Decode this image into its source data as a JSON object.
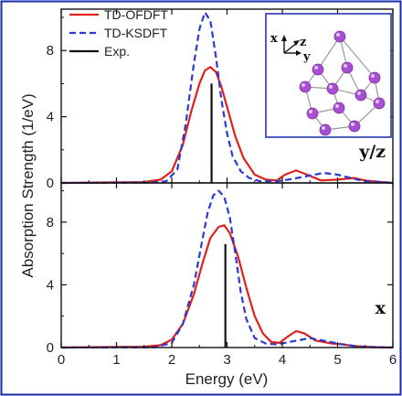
{
  "chart_data": {
    "type": "line",
    "xlabel": "Energy (eV)",
    "ylabel": "Absorption Strength (1/eV)",
    "xlim": [
      0,
      6
    ],
    "x_ticks": [
      "0",
      "1",
      "2",
      "3",
      "4",
      "5",
      "6"
    ],
    "legend": {
      "placement": "top-left",
      "entries": [
        "TD-OFDFT",
        "TD-KSDFT",
        "Exp."
      ]
    },
    "colors": {
      "ofdft": "#e0201b",
      "ksdft": "#2a3bd4",
      "exp": "#111111",
      "frame": "#1a2aa8",
      "atom": "#a84ed3"
    },
    "inset": {
      "label_x": "x",
      "label_z": "z",
      "label_y": "y"
    },
    "panels": [
      {
        "label": "y/z",
        "ylim": [
          0,
          10.5
        ],
        "y_ticks": [
          "0",
          "4",
          "8"
        ],
        "series": [
          {
            "name": "TD-OFDFT",
            "style": "solid",
            "x": [
              0,
              1.5,
              1.8,
              2.0,
              2.2,
              2.35,
              2.5,
              2.6,
              2.7,
              2.8,
              2.9,
              3.0,
              3.15,
              3.3,
              3.5,
              3.7,
              3.9,
              4.05,
              4.25,
              4.45,
              4.7,
              5.0,
              5.3,
              5.5,
              5.8,
              6.0
            ],
            "y": [
              0,
              0.05,
              0.2,
              0.7,
              2.3,
              4.3,
              6.0,
              6.8,
              7.0,
              6.7,
              5.8,
              4.6,
              2.8,
              1.5,
              0.5,
              0.2,
              0.15,
              0.5,
              0.75,
              0.5,
              0.15,
              0.2,
              0.3,
              0.15,
              0.05,
              0
            ]
          },
          {
            "name": "TD-KSDFT",
            "style": "dashed",
            "x": [
              0,
              1.6,
              1.9,
              2.1,
              2.25,
              2.4,
              2.5,
              2.6,
              2.7,
              2.8,
              2.9,
              3.0,
              3.1,
              3.25,
              3.4,
              3.6,
              3.9,
              4.2,
              4.5,
              4.75,
              5.0,
              5.3,
              5.5,
              5.8,
              6.0
            ],
            "y": [
              0,
              0.02,
              0.1,
              0.8,
              3.5,
              7.2,
              9.3,
              10.3,
              9.8,
              7.6,
              5.0,
              3.0,
              1.6,
              0.7,
              0.3,
              0.1,
              0.1,
              0.25,
              0.45,
              0.6,
              0.5,
              0.25,
              0.1,
              0.05,
              0
            ]
          },
          {
            "name": "Exp.",
            "style": "stick",
            "x": [
              2.72
            ],
            "y": [
              6.0
            ]
          }
        ]
      },
      {
        "label": "x",
        "ylim": [
          0,
          10.5
        ],
        "y_ticks": [
          "0",
          "4",
          "8"
        ],
        "series": [
          {
            "name": "TD-OFDFT",
            "style": "solid",
            "x": [
              0,
              1.5,
              1.8,
              2.0,
              2.2,
              2.4,
              2.55,
              2.7,
              2.85,
              2.95,
              3.05,
              3.2,
              3.35,
              3.5,
              3.65,
              3.8,
              3.95,
              4.1,
              4.25,
              4.4,
              4.6,
              4.9,
              5.1,
              5.3,
              5.6,
              6.0
            ],
            "y": [
              0,
              0.05,
              0.15,
              0.5,
              1.5,
              3.4,
              5.3,
              7.0,
              7.7,
              7.8,
              7.3,
              5.8,
              3.8,
              2.0,
              0.9,
              0.35,
              0.3,
              0.7,
              1.05,
              0.9,
              0.45,
              0.25,
              0.2,
              0.1,
              0.03,
              0
            ]
          },
          {
            "name": "TD-KSDFT",
            "style": "dashed",
            "x": [
              0,
              1.7,
              2.0,
              2.2,
              2.4,
              2.55,
              2.65,
              2.75,
              2.85,
              2.95,
              3.05,
              3.15,
              3.25,
              3.35,
              3.5,
              3.7,
              3.9,
              4.2,
              4.5,
              4.8,
              5.1,
              5.4,
              6.0
            ],
            "y": [
              0,
              0.02,
              0.3,
              1.5,
              4.0,
              6.8,
              8.6,
              9.7,
              10.0,
              9.6,
              8.3,
              6.0,
              3.5,
              1.8,
              0.6,
              0.25,
              0.2,
              0.4,
              0.6,
              0.4,
              0.2,
              0.05,
              0
            ]
          },
          {
            "name": "Exp.",
            "style": "stick",
            "x": [
              2.97
            ],
            "y": [
              6.6
            ]
          }
        ]
      }
    ]
  }
}
